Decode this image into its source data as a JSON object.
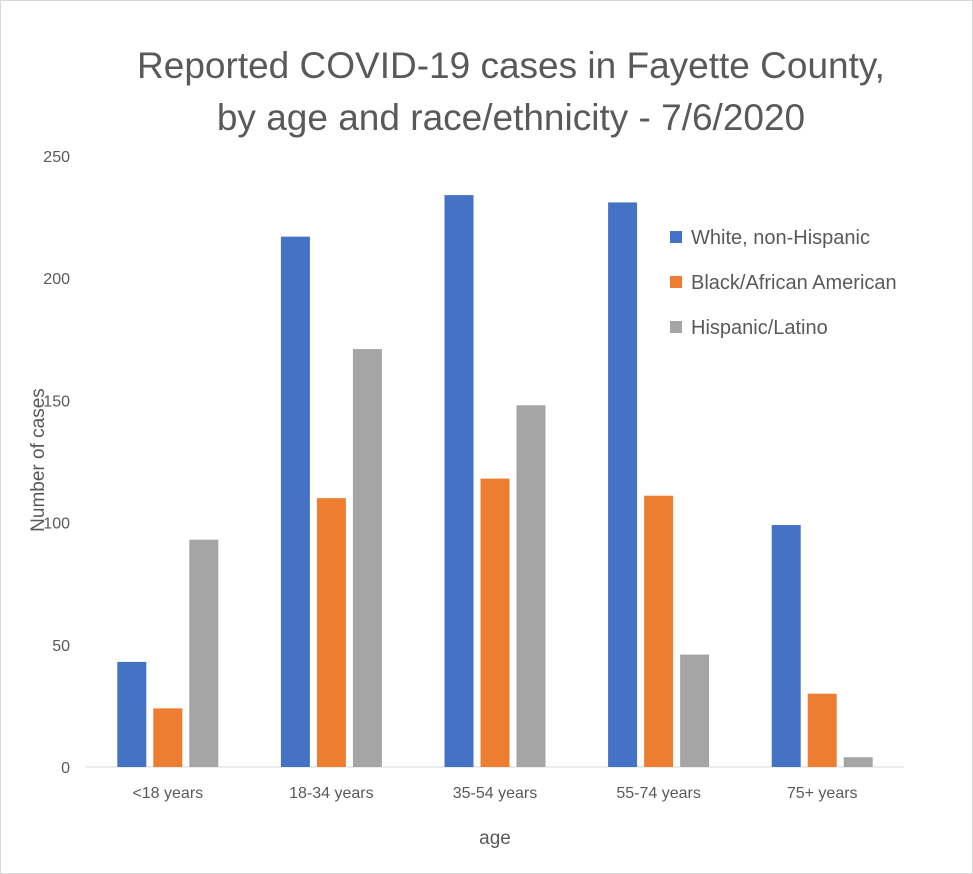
{
  "chart_data": {
    "type": "bar",
    "title_line1": "Reported COVID-19 cases in Fayette County,",
    "title_line2": "by age and race/ethnicity - 7/6/2020",
    "xlabel": "age",
    "ylabel": "Number of cases",
    "categories": [
      "<18 years",
      "18-34 years",
      "35-54 years",
      "55-74 years",
      "75+ years"
    ],
    "ylim": [
      0,
      250
    ],
    "yticks": [
      "0",
      "50",
      "100",
      "150",
      "200",
      "250"
    ],
    "grid": false,
    "legend_position": "top-right",
    "series": [
      {
        "name": "White, non-Hispanic",
        "color": "#4472c4",
        "values": [
          43,
          217,
          234,
          231,
          99
        ]
      },
      {
        "name": "Black/African American",
        "color": "#ed7d31",
        "values": [
          24,
          110,
          118,
          111,
          30
        ]
      },
      {
        "name": "Hispanic/Latino",
        "color": "#a5a5a5",
        "values": [
          93,
          171,
          148,
          46,
          4
        ]
      }
    ]
  }
}
